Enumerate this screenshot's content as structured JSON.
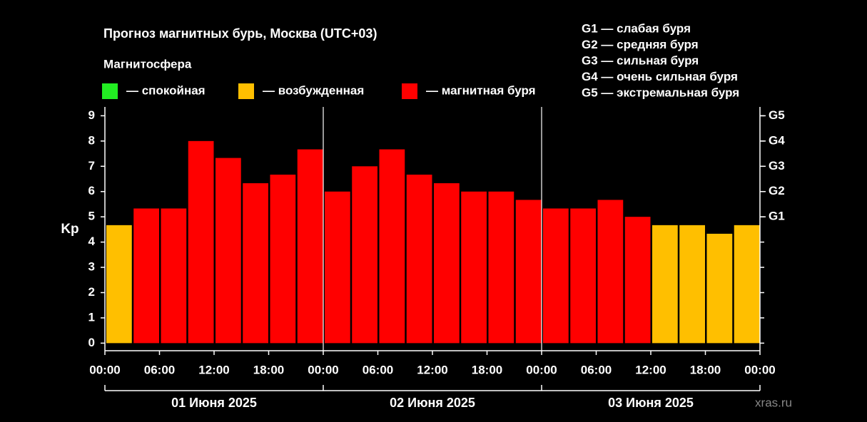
{
  "chart_data": {
    "type": "bar",
    "title": "Прогноз магнитных бурь, Москва (UTC+03)",
    "legend_title": "Магнитосфера",
    "legend": [
      {
        "name": "— спокойная",
        "color": "#22ee22"
      },
      {
        "name": "— возбужденная",
        "color": "#ffbf00"
      },
      {
        "name": "— магнитная буря",
        "color": "#ff0000"
      }
    ],
    "scale_notes": [
      "G1 — слабая буря",
      "G2 — средняя буря",
      "G3 — сильная буря",
      "G4 — очень сильная буря",
      "G5 — экстремальная буря"
    ],
    "ylabel": "Kp",
    "xticks": [
      "00:00",
      "06:00",
      "12:00",
      "18:00",
      "00:00",
      "06:00",
      "12:00",
      "18:00",
      "00:00",
      "06:00",
      "12:00",
      "18:00",
      "00:00"
    ],
    "groups": [
      "01 Июня 2025",
      "02 Июня 2025",
      "03 Июня 2025"
    ],
    "series": [
      {
        "values": [
          4.67,
          5.33,
          5.33,
          8,
          7.33,
          6.33,
          6.67,
          7.67,
          6,
          7,
          7.67,
          6.67,
          6.33,
          6,
          6,
          5.67,
          5.33,
          5.33,
          5.67,
          5,
          4.67,
          4.67,
          4.33,
          4.67
        ],
        "colors": [
          "#ffbf00",
          "#ff0000",
          "#ff0000",
          "#ff0000",
          "#ff0000",
          "#ff0000",
          "#ff0000",
          "#ff0000",
          "#ff0000",
          "#ff0000",
          "#ff0000",
          "#ff0000",
          "#ff0000",
          "#ff0000",
          "#ff0000",
          "#ff0000",
          "#ff0000",
          "#ff0000",
          "#ff0000",
          "#ff0000",
          "#ffbf00",
          "#ffbf00",
          "#ffbf00",
          "#ffbf00"
        ]
      }
    ],
    "ylim": [
      -0.3,
      9.35
    ],
    "yticks": [
      0,
      1,
      2,
      3,
      4,
      5,
      6,
      7,
      8,
      9
    ],
    "y2lim": [
      -0.3,
      9.35
    ],
    "y2ticks": [
      {
        "value": 5,
        "label": "G1"
      },
      {
        "value": 6,
        "label": "G2"
      },
      {
        "value": 7,
        "label": "G3"
      },
      {
        "value": 8,
        "label": "G4"
      },
      {
        "value": 9,
        "label": "G5"
      }
    ],
    "watermark": "xras.ru"
  }
}
